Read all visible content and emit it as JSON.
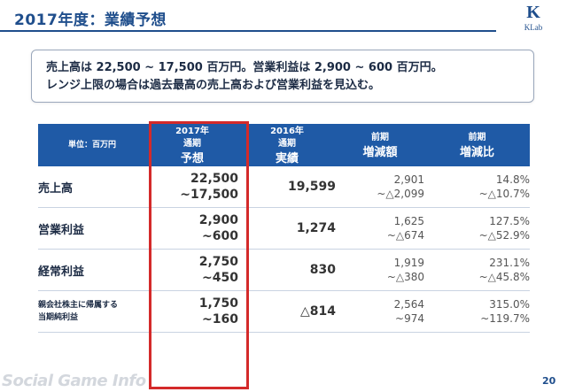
{
  "title": "2017年度：業績予想",
  "logo": {
    "mark": "K",
    "brand": "KLab"
  },
  "summary": {
    "line1": "売上高は 22,500 ~ 17,500 百万円。営業利益は 2,900 ~ 600 百万円。",
    "line2": "レンジ上限の場合は過去最高の売上高および営業利益を見込む。"
  },
  "table": {
    "header": {
      "unit": "単位：百万円",
      "col1": {
        "top": "2017年",
        "mid": "通期",
        "big": "予想"
      },
      "col2": {
        "top": "2016年",
        "mid": "通期",
        "big": "実績"
      },
      "col3": {
        "top": "前期",
        "big": "増減額"
      },
      "col4": {
        "top": "前期",
        "big": "増減比"
      }
    },
    "rows": [
      {
        "label": "売上高",
        "forecast_high": "22,500",
        "forecast_low": "~17,500",
        "actual": "19,599",
        "chg_high": "2,901",
        "chg_low": "~△2,099",
        "ratio_high": "14.8%",
        "ratio_low": "~△10.7%"
      },
      {
        "label": "営業利益",
        "forecast_high": "2,900",
        "forecast_low": "~600",
        "actual": "1,274",
        "chg_high": "1,625",
        "chg_low": "~△674",
        "ratio_high": "127.5%",
        "ratio_low": "~△52.9%"
      },
      {
        "label": "経常利益",
        "forecast_high": "2,750",
        "forecast_low": "~450",
        "actual": "830",
        "chg_high": "1,919",
        "chg_low": "~△380",
        "ratio_high": "231.1%",
        "ratio_low": "~△45.8%"
      },
      {
        "label_line1": "親会社株主に帰属する",
        "label_line2": "当期純利益",
        "forecast_high": "1,750",
        "forecast_low": "~160",
        "actual": "△814",
        "chg_high": "2,564",
        "chg_low": "~974",
        "ratio_high": "315.0%",
        "ratio_low": "~119.7%"
      }
    ]
  },
  "watermark": "Social Game Info",
  "page_number": "20",
  "colors": {
    "accent": "#1f5aa6",
    "title": "#1f4e8c",
    "highlight_frame": "#d42a2a"
  }
}
